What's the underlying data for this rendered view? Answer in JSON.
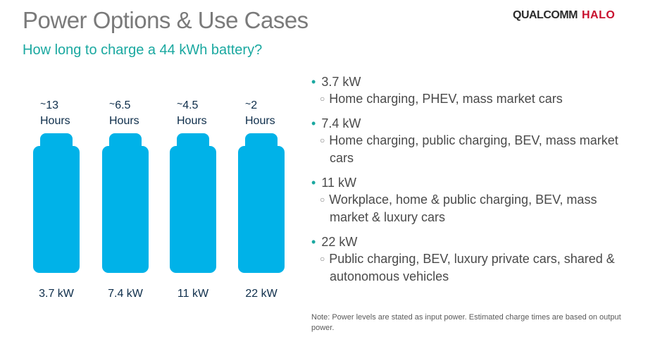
{
  "header": {
    "title": "Power Options & Use Cases",
    "subtitle": "How long to charge a 44 kWh battery?",
    "logo_qualcomm": "QUALCOMM",
    "logo_halo": "HALO"
  },
  "batteries": [
    {
      "tilde": "~",
      "hours": "13",
      "unit": "Hours",
      "kw": "3.7 kW"
    },
    {
      "tilde": "~",
      "hours": "6.5",
      "unit": "Hours",
      "kw": "7.4 kW"
    },
    {
      "tilde": "~",
      "hours": "4.5",
      "unit": "Hours",
      "kw": "11 kW"
    },
    {
      "tilde": "~",
      "hours": "2",
      "unit": "Hours",
      "kw": "22 kW"
    }
  ],
  "bullets": [
    {
      "head": "3.7 kW",
      "sub": "Home charging, PHEV, mass market cars"
    },
    {
      "head": "7.4 kW",
      "sub": "Home charging, public charging, BEV, mass market cars"
    },
    {
      "head": "11 kW",
      "sub": "Workplace, home & public charging, BEV, mass market & luxury cars"
    },
    {
      "head": "22 kW",
      "sub": "Public charging, BEV, luxury private cars, shared & autonomous vehicles"
    }
  ],
  "note": "Note: Power levels are stated as input power.  Estimated charge times are based on output power.",
  "colors": {
    "battery": "#00b2e8",
    "accent": "#1aa8a0",
    "title": "#7a7a7a",
    "brand_red": "#c8102e"
  }
}
